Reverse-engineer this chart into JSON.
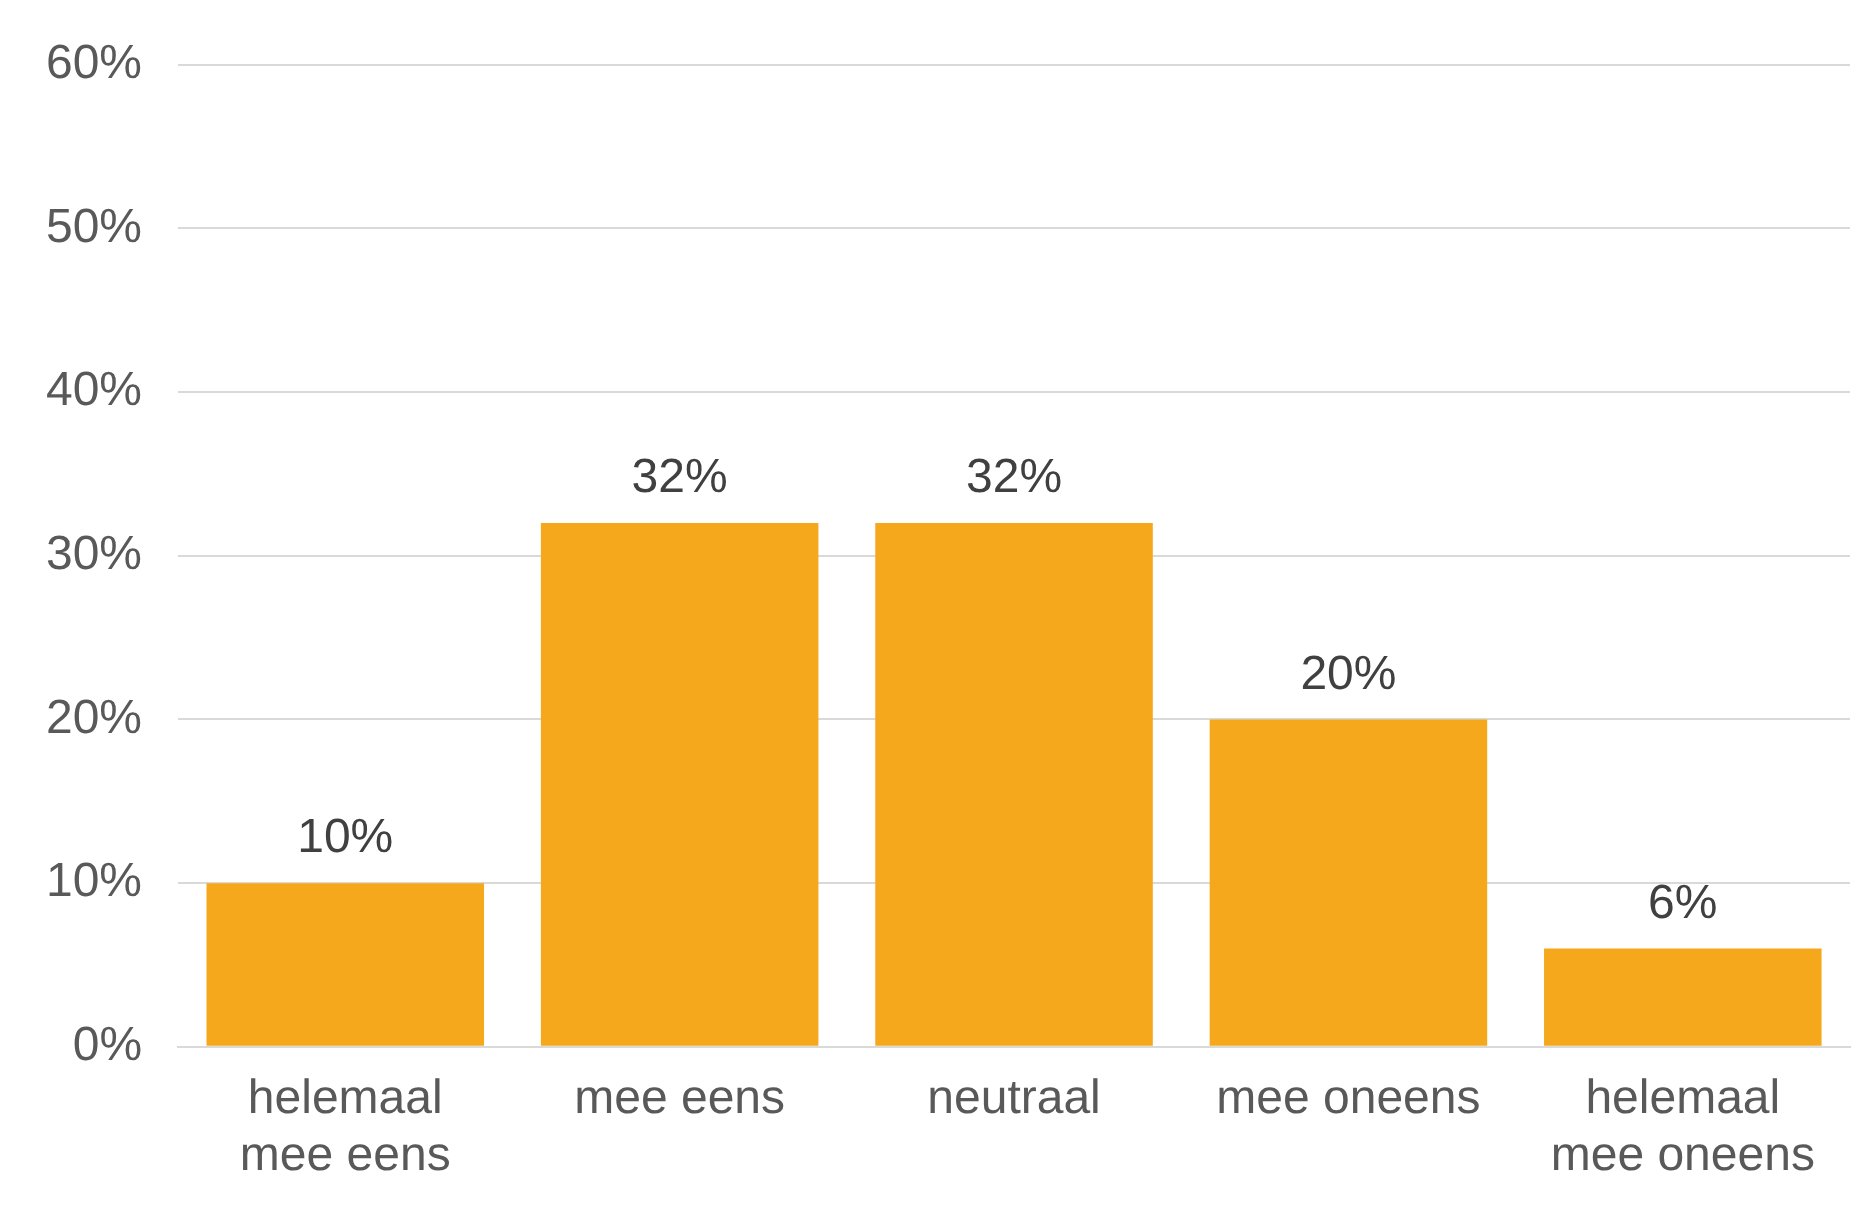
{
  "chart_data": {
    "type": "bar",
    "categories": [
      "helemaal mee eens",
      "mee eens",
      "neutraal",
      "mee oneens",
      "helemaal mee oneens"
    ],
    "values": [
      10,
      32,
      32,
      20,
      6
    ],
    "value_labels": [
      "10%",
      "32%",
      "32%",
      "20%",
      "6%"
    ],
    "color": "#f5a81c",
    "ylim": [
      0,
      60
    ],
    "yticks": [
      {
        "value": 0,
        "label": "0%"
      },
      {
        "value": 10,
        "label": "10%"
      },
      {
        "value": 20,
        "label": "20%"
      },
      {
        "value": 30,
        "label": "30%"
      },
      {
        "value": 40,
        "label": "40%"
      },
      {
        "value": 50,
        "label": "50%"
      },
      {
        "value": 60,
        "label": "60%"
      }
    ],
    "grid": "y",
    "legend": false
  }
}
